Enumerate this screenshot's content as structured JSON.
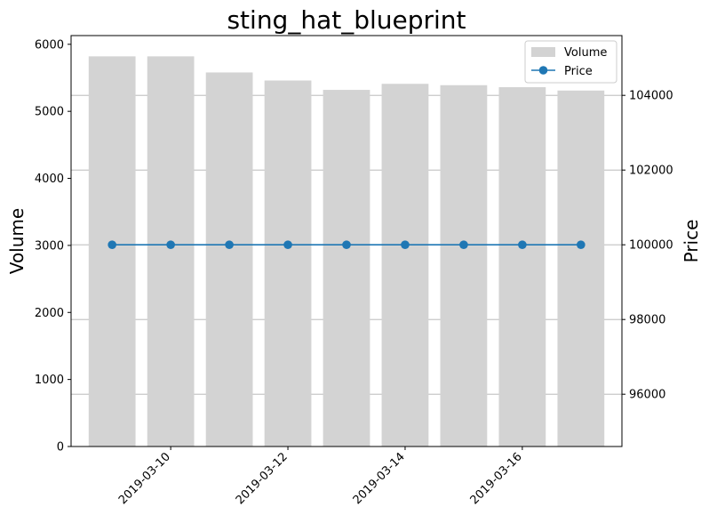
{
  "chart_data": {
    "type": "bar+line",
    "title": "sting_hat_blueprint",
    "x": [
      "2019-03-09",
      "2019-03-10",
      "2019-03-11",
      "2019-03-12",
      "2019-03-13",
      "2019-03-14",
      "2019-03-15",
      "2019-03-16",
      "2019-03-17"
    ],
    "x_tick_labels": [
      "2019-03-10",
      "2019-03-12",
      "2019-03-14",
      "2019-03-16"
    ],
    "series": [
      {
        "name": "Volume",
        "type": "bar",
        "axis": "left",
        "color": "#d3d3d3",
        "values": [
          5820,
          5820,
          5580,
          5460,
          5320,
          5410,
          5390,
          5360,
          5310
        ]
      },
      {
        "name": "Price",
        "type": "line",
        "axis": "right",
        "color": "#1f77b4",
        "marker": "circle",
        "values": [
          100000,
          100000,
          100000,
          100000,
          100000,
          100000,
          100000,
          100000,
          100000
        ]
      }
    ],
    "y_left": {
      "label": "Volume",
      "lim": [
        0,
        6130
      ],
      "ticks": [
        0,
        1000,
        2000,
        3000,
        4000,
        5000,
        6000
      ]
    },
    "y_right": {
      "label": "Price",
      "lim": [
        94600,
        105600
      ],
      "ticks": [
        96000,
        98000,
        100000,
        102000,
        104000
      ]
    },
    "grid": "right-axis horizontal",
    "legend_position": "top-right"
  }
}
